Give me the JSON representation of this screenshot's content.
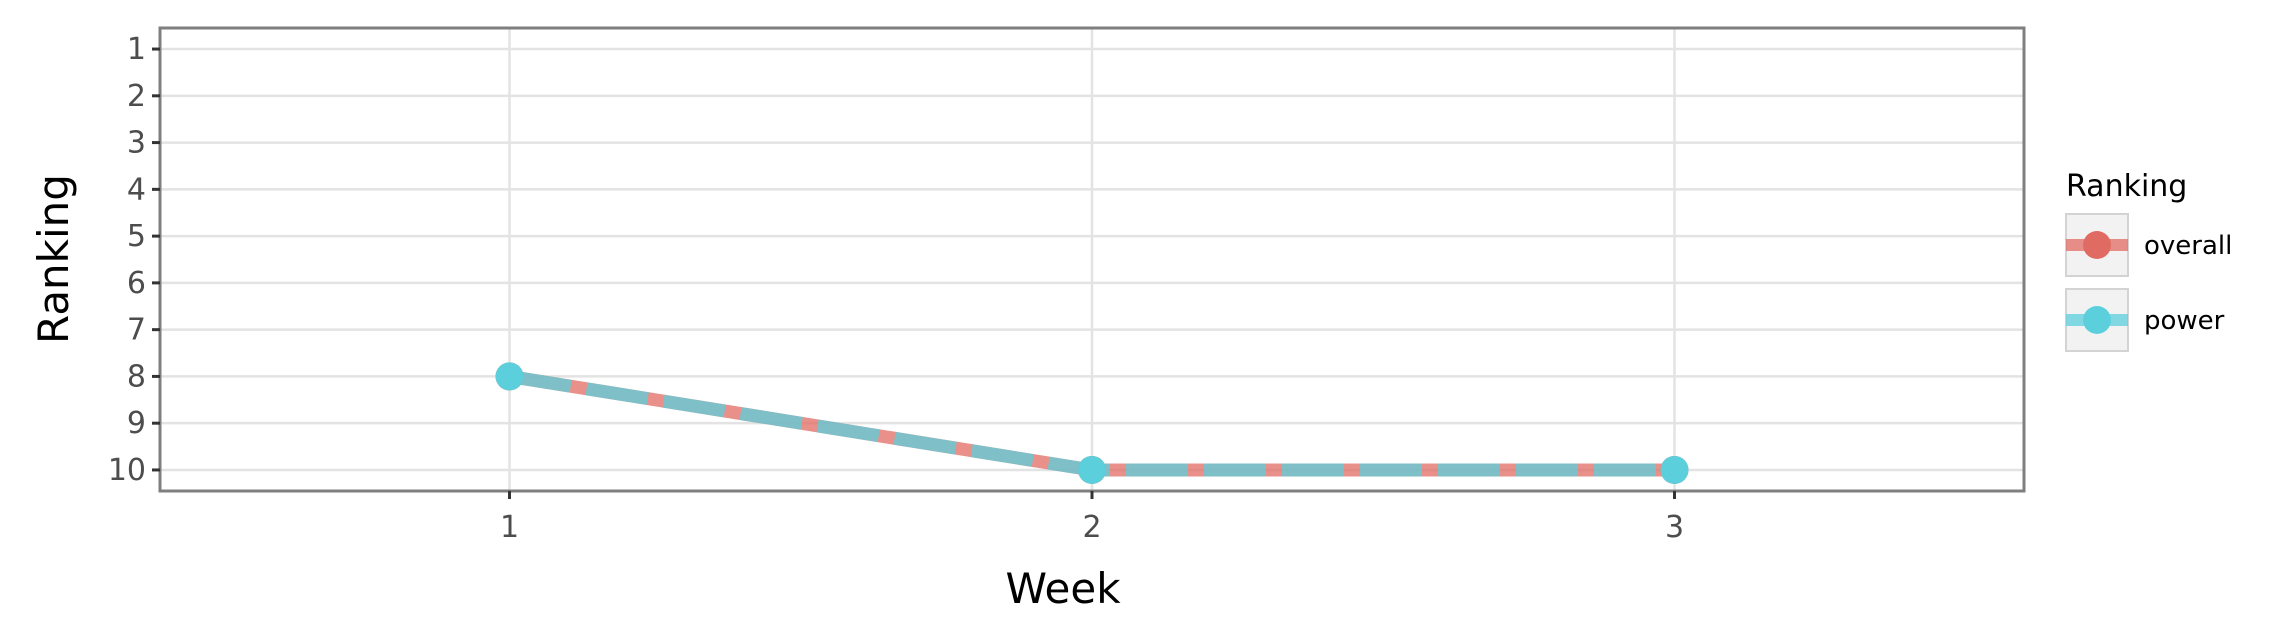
{
  "chart_data": {
    "type": "line",
    "xlabel": "Week",
    "ylabel": "Ranking",
    "x": [
      1,
      2,
      3
    ],
    "xlim": [
      0.4,
      3.6
    ],
    "ylim": [
      10.45,
      0.55
    ],
    "y_reversed": true,
    "x_ticks": [
      "1",
      "2",
      "3"
    ],
    "y_ticks": [
      "1",
      "2",
      "3",
      "4",
      "5",
      "6",
      "7",
      "8",
      "9",
      "10"
    ],
    "grid": true,
    "legend": {
      "title": "Ranking",
      "placement": "right"
    },
    "series": [
      {
        "name": "overall",
        "values": [
          8,
          10,
          10
        ],
        "color": "#e06b62",
        "line_style": "solid"
      },
      {
        "name": "power",
        "values": [
          8,
          10,
          10
        ],
        "color": "#5ccfdc",
        "line_style": "dashed"
      }
    ]
  }
}
